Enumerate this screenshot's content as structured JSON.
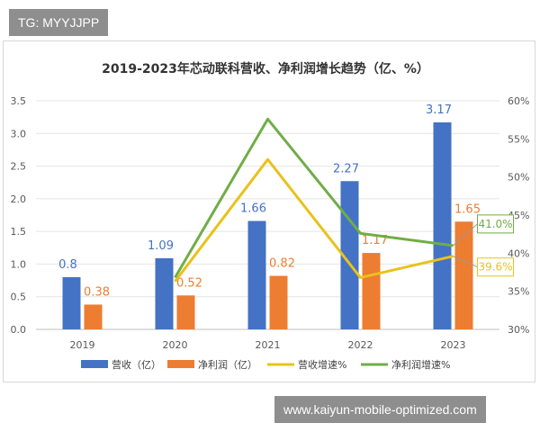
{
  "watermark_top": "TG: MYYJJPP",
  "watermark_bottom": "www.kaiyun-mobile-optimized.com",
  "colors": {
    "revenue": "#4472c4",
    "profit": "#ed7d31",
    "revenue_growth": "#e8c21c",
    "profit_growth": "#70ad47",
    "grid": "#e4e4e4",
    "axis_text": "#595959"
  },
  "chart_data": {
    "type": "bar",
    "title": "2019-2023年芯动联科营收、净利润增长趋势（亿、%）",
    "categories": [
      "2019",
      "2020",
      "2021",
      "2022",
      "2023"
    ],
    "series": [
      {
        "name": "营收（亿）",
        "type": "bar",
        "axis": "left",
        "values": [
          0.8,
          1.09,
          1.66,
          2.27,
          3.17
        ]
      },
      {
        "name": "净利润（亿）",
        "type": "bar",
        "axis": "left",
        "values": [
          0.38,
          0.52,
          0.82,
          1.17,
          1.65
        ]
      },
      {
        "name": "营收增速%",
        "type": "line",
        "axis": "right",
        "values": [
          null,
          36.3,
          52.3,
          36.8,
          39.6
        ]
      },
      {
        "name": "净利润增速%",
        "type": "line",
        "axis": "right",
        "values": [
          null,
          36.8,
          57.6,
          42.6,
          41.0
        ]
      }
    ],
    "y_left": {
      "ylim": [
        0,
        3.5
      ],
      "ticks": [
        "0.0",
        "0.5",
        "1.0",
        "1.5",
        "2.0",
        "2.5",
        "3.0",
        "3.5"
      ]
    },
    "y_right": {
      "ylim": [
        30,
        60
      ],
      "ticks": [
        "30%",
        "35%",
        "40%",
        "45%",
        "50%",
        "55%",
        "60%"
      ]
    },
    "bar_labels": {
      "revenue": [
        "0.8",
        "1.09",
        "1.66",
        "2.27",
        "3.17"
      ],
      "profit": [
        "0.38",
        "0.52",
        "0.82",
        "1.17",
        "1.65"
      ]
    },
    "callouts": [
      {
        "series": 3,
        "index": 4,
        "text": "41.0%"
      },
      {
        "series": 2,
        "index": 4,
        "text": "39.6%"
      }
    ],
    "grid": true,
    "legend": "bottom"
  }
}
